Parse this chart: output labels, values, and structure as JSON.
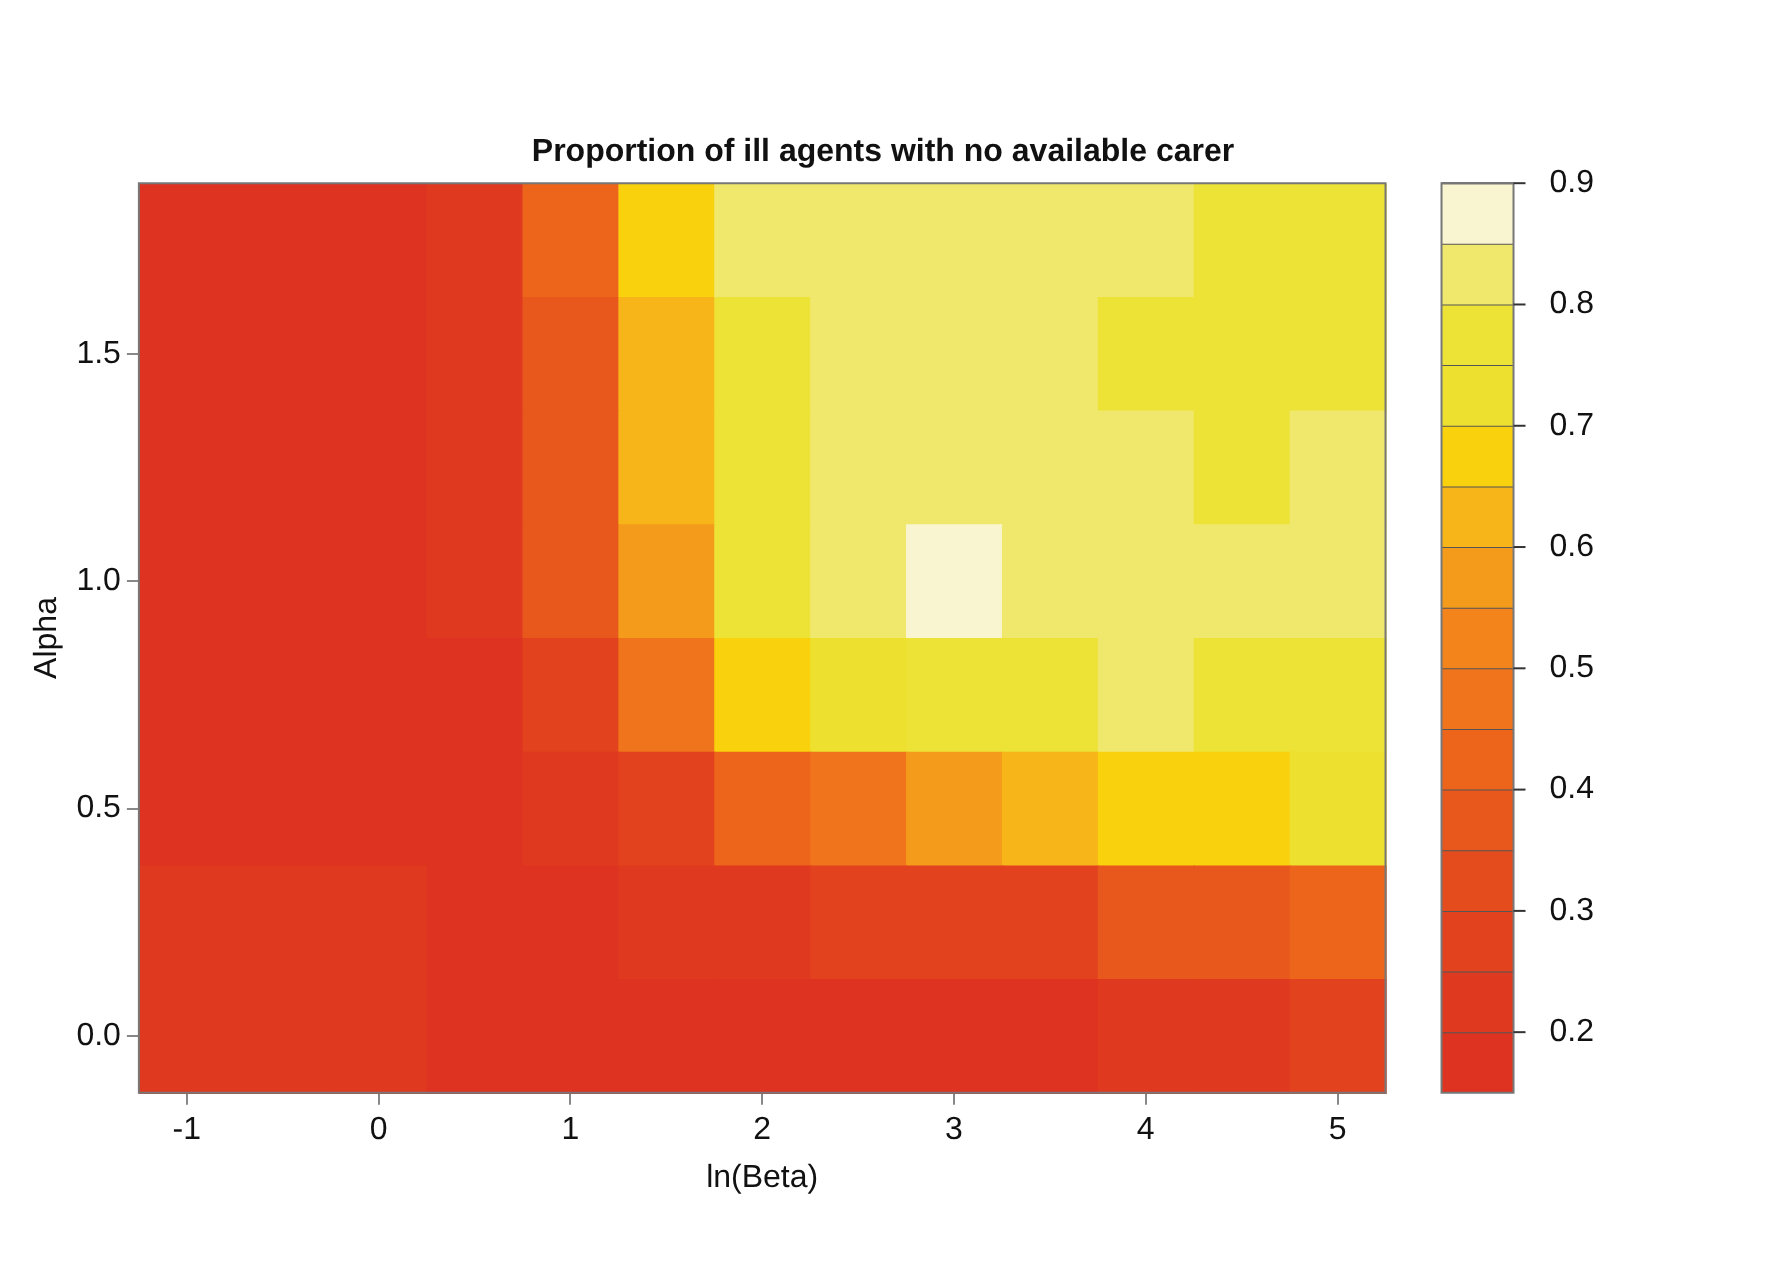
{
  "chart_data": {
    "type": "heatmap",
    "title": "Proportion of ill agents with no available carer",
    "xlabel": "ln(Beta)",
    "ylabel": "Alpha",
    "categories": [
      "-1",
      null,
      "0",
      null,
      "1",
      null,
      "2",
      null,
      "3",
      null,
      "4",
      null,
      "5"
    ],
    "y_categories": [
      null,
      "1.5",
      null,
      "1.0",
      null,
      "0.5",
      null,
      "0.0"
    ],
    "cells": [
      [
        0.17,
        0.17,
        0.17,
        0.2,
        0.4,
        0.65,
        0.8,
        0.82,
        0.82,
        0.82,
        0.8,
        0.78,
        0.79
      ],
      [
        0.17,
        0.17,
        0.17,
        0.2,
        0.38,
        0.62,
        0.79,
        0.82,
        0.82,
        0.82,
        0.79,
        0.77,
        0.78
      ],
      [
        0.17,
        0.17,
        0.17,
        0.2,
        0.37,
        0.6,
        0.78,
        0.82,
        0.84,
        0.82,
        0.81,
        0.78,
        0.8
      ],
      [
        0.17,
        0.17,
        0.17,
        0.2,
        0.35,
        0.58,
        0.76,
        0.82,
        0.87,
        0.83,
        0.82,
        0.81,
        0.82
      ],
      [
        0.17,
        0.17,
        0.17,
        0.19,
        0.3,
        0.5,
        0.68,
        0.75,
        0.78,
        0.79,
        0.8,
        0.79,
        0.79
      ],
      [
        0.17,
        0.17,
        0.17,
        0.18,
        0.22,
        0.3,
        0.4,
        0.5,
        0.56,
        0.62,
        0.66,
        0.68,
        0.7
      ],
      [
        0.2,
        0.21,
        0.2,
        0.18,
        0.18,
        0.2,
        0.22,
        0.25,
        0.28,
        0.3,
        0.35,
        0.38,
        0.42
      ],
      [
        0.21,
        0.21,
        0.21,
        0.19,
        0.17,
        0.17,
        0.18,
        0.18,
        0.18,
        0.19,
        0.2,
        0.22,
        0.25
      ]
    ],
    "colors": [
      "#dd3320",
      "#df3a1f",
      "#e2421e",
      "#e54c1d",
      "#e8571c",
      "#ec651b",
      "#ef741b",
      "#f2841b",
      "#f59b1b",
      "#f7b51a",
      "#f9d10d",
      "#eee02e",
      "#ede236",
      "#f0e86c",
      "#f8f5d0"
    ],
    "clim": [
      0.15,
      0.9
    ],
    "cticks": [
      0.2,
      0.3,
      0.4,
      0.5,
      0.6,
      0.7,
      0.8,
      0.9
    ]
  }
}
